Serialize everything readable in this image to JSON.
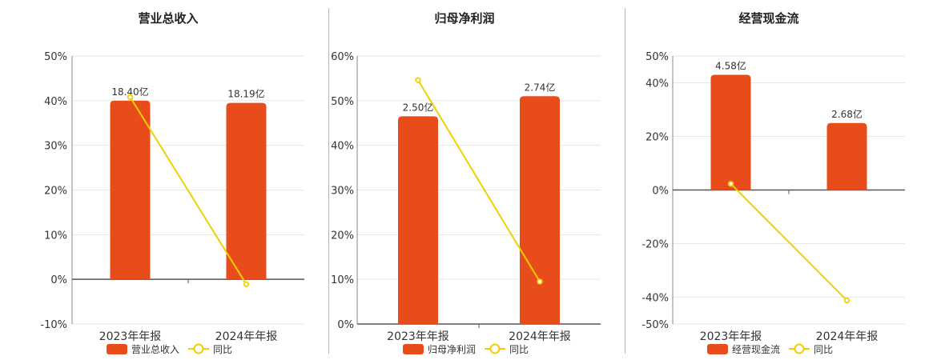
{
  "colors": {
    "bar": "#e84c1b",
    "line": "#f0d000",
    "grid": "#e6e6e6",
    "axis": "#555555",
    "text": "#333333"
  },
  "legend": {
    "line_label": "同比"
  },
  "chart_data": [
    {
      "type": "bar",
      "title": "营业总收入",
      "categories": [
        "2023年年报",
        "2024年年报"
      ],
      "series": [
        {
          "name": "营业总收入",
          "type": "bar",
          "values": [
            40.0,
            39.5
          ],
          "data_labels": [
            "18.40亿",
            "18.19亿"
          ]
        },
        {
          "name": "同比",
          "type": "line",
          "values": [
            40.8,
            -1.1
          ]
        }
      ],
      "ylim": [
        -10,
        50
      ],
      "yticks": [
        -10,
        0,
        10,
        20,
        30,
        40,
        50
      ],
      "ytick_labels": [
        "-10%",
        "0%",
        "10%",
        "20%",
        "30%",
        "40%",
        "50%"
      ],
      "legend_position": "bottom"
    },
    {
      "type": "bar",
      "title": "归母净利润",
      "categories": [
        "2023年年报",
        "2024年年报"
      ],
      "series": [
        {
          "name": "归母净利润",
          "type": "bar",
          "values": [
            46.5,
            51.0
          ],
          "data_labels": [
            "2.50亿",
            "2.74亿"
          ]
        },
        {
          "name": "同比",
          "type": "line",
          "values": [
            54.6,
            9.5
          ]
        }
      ],
      "ylim": [
        0,
        60
      ],
      "yticks": [
        0,
        10,
        20,
        30,
        40,
        50,
        60
      ],
      "ytick_labels": [
        "0%",
        "10%",
        "20%",
        "30%",
        "40%",
        "50%",
        "60%"
      ],
      "legend_position": "bottom"
    },
    {
      "type": "bar",
      "title": "经营现金流",
      "categories": [
        "2023年年报",
        "2024年年报"
      ],
      "series": [
        {
          "name": "经营现金流",
          "type": "bar",
          "values": [
            43.0,
            25.0
          ],
          "data_labels": [
            "4.58亿",
            "2.68亿"
          ]
        },
        {
          "name": "同比",
          "type": "line",
          "values": [
            2.3,
            -41.2
          ]
        }
      ],
      "ylim": [
        -50,
        50
      ],
      "yticks": [
        -50,
        -40,
        -20,
        0,
        20,
        40,
        50
      ],
      "ytick_labels": [
        "-50%",
        "-40%",
        "-20%",
        "0%",
        "20%",
        "40%",
        "50%"
      ],
      "legend_position": "bottom"
    }
  ]
}
